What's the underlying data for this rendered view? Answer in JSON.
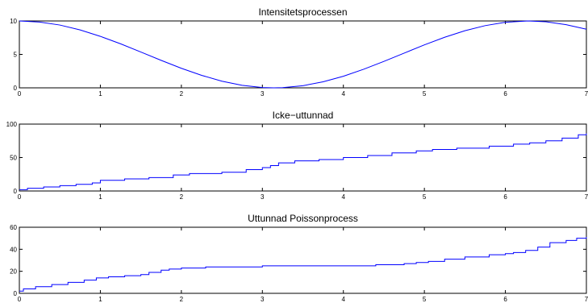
{
  "chart_data": [
    {
      "type": "line",
      "title": "Intensitetsprocessen",
      "xlim": [
        0,
        7
      ],
      "ylim": [
        0,
        10
      ],
      "xticks": [
        0,
        1,
        2,
        3,
        4,
        5,
        6,
        7
      ],
      "yticks": [
        0,
        5,
        10
      ],
      "line_color": "#0000ff",
      "series": [
        {
          "x": [
            0,
            0.25,
            0.5,
            0.75,
            1,
            1.25,
            1.5,
            1.75,
            2,
            2.25,
            2.5,
            2.75,
            3,
            3.14,
            3.25,
            3.5,
            3.75,
            4,
            4.25,
            4.5,
            4.75,
            5,
            5.25,
            5.5,
            5.75,
            6,
            6.28,
            6.5,
            6.75,
            7
          ],
          "y": [
            10,
            9.84,
            9.39,
            8.66,
            7.7,
            6.58,
            5.35,
            4.11,
            2.92,
            1.87,
            0.99,
            0.38,
            0.05,
            0,
            0.03,
            0.32,
            0.9,
            1.73,
            2.78,
            3.95,
            5.19,
            6.42,
            7.56,
            8.54,
            9.3,
            9.8,
            10,
            9.88,
            9.44,
            8.77
          ]
        }
      ]
    },
    {
      "type": "line",
      "title": "Icke−uttunnad",
      "xlim": [
        0,
        7
      ],
      "ylim": [
        0,
        100
      ],
      "xticks": [
        0,
        1,
        2,
        3,
        4,
        5,
        6,
        7
      ],
      "yticks": [
        0,
        50,
        100
      ],
      "line_color": "#0000ff",
      "series": [
        {
          "step": true,
          "x": [
            0,
            0.1,
            0.3,
            0.5,
            0.7,
            0.9,
            1.0,
            1.3,
            1.6,
            1.9,
            2.1,
            2.5,
            2.8,
            3.0,
            3.1,
            3.2,
            3.4,
            3.7,
            4.0,
            4.3,
            4.6,
            4.9,
            5.1,
            5.4,
            5.8,
            6.1,
            6.3,
            6.5,
            6.7,
            6.9,
            7.0
          ],
          "y": [
            2,
            4,
            6,
            8,
            10,
            12,
            16,
            18,
            20,
            24,
            26,
            28,
            32,
            35,
            38,
            42,
            45,
            47,
            50,
            53,
            57,
            60,
            62,
            64,
            67,
            70,
            72,
            75,
            79,
            84,
            86
          ]
        }
      ]
    },
    {
      "type": "line",
      "title": "Uttunnad Poissonprocess",
      "xlim": [
        0,
        7
      ],
      "ylim": [
        0,
        60
      ],
      "xticks": [
        0,
        1,
        2,
        3,
        4,
        5,
        6,
        7
      ],
      "yticks": [
        0,
        20,
        40,
        60
      ],
      "line_color": "#0000ff",
      "series": [
        {
          "step": true,
          "x": [
            0,
            0.05,
            0.2,
            0.4,
            0.6,
            0.8,
            0.95,
            1.1,
            1.3,
            1.5,
            1.6,
            1.75,
            1.85,
            2.0,
            2.3,
            3.0,
            3.5,
            4.0,
            4.4,
            4.75,
            4.9,
            5.05,
            5.25,
            5.5,
            5.8,
            6.0,
            6.1,
            6.25,
            6.4,
            6.55,
            6.75,
            6.88,
            7.0
          ],
          "y": [
            2,
            4,
            6,
            8,
            10,
            12,
            14,
            15,
            16,
            17,
            19,
            21,
            22,
            23,
            24,
            25,
            25,
            25,
            26,
            27,
            28,
            29,
            31,
            33,
            35,
            36,
            37,
            39,
            42,
            46,
            48,
            50,
            51
          ]
        }
      ]
    }
  ]
}
